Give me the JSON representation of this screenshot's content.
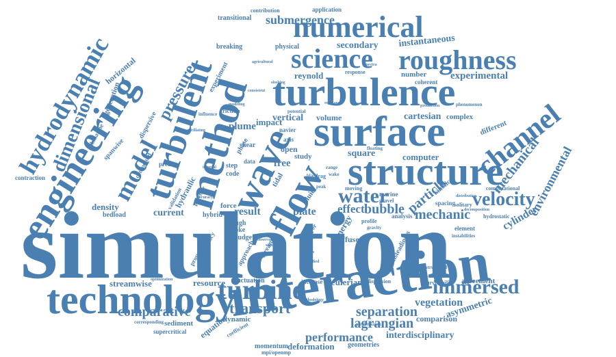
{
  "theme": {
    "word_color": "#4a7fb2",
    "background": "#ffffff"
  },
  "words": {
    "simulation": "simulation",
    "interaction": "interaction",
    "technology": "technology",
    "structure": "structure",
    "surface": "surface",
    "turbulence": "turbulence",
    "method": "method",
    "engineering": "engineering",
    "flow": "flow",
    "wave": "wave",
    "turbulent": "turbulent",
    "numerical": "numerical",
    "science": "science",
    "roughness": "roughness",
    "channel": "channel",
    "turbine": "turbine",
    "immersed": "immersed",
    "hydrodynamic": "hydrodynamic",
    "dimensional": "dimensional",
    "model": "model",
    "pressure": "pressure",
    "velocity": "velocity",
    "mechanical": "mechanical",
    "water": "water",
    "bubble": "bubble",
    "effect": "effect",
    "particle": "particle",
    "mechanic": "mechanic",
    "environmental": "environmental",
    "cylinder": "cylinder",
    "transport": "transport",
    "separation": "separation",
    "lagrangian": "lagrangian",
    "performance": "performance",
    "comparative": "comparative",
    "current": "current",
    "result": "result",
    "plate": "plate",
    "density": "density",
    "vegetation": "vegetation",
    "comparison": "comparison",
    "asymmetric": "asymmetric",
    "interdisciplinary": "interdisciplinary",
    "deformation": "deformation",
    "geometries": "geometries",
    "momentum": "momentum",
    "mpi_openmp": "mpi/openmp",
    "streamwise": "streamwise",
    "resource": "resource",
    "fluctuation": "fluctuation",
    "increase": "increase",
    "eulerian": "eulerian",
    "dispersion": "dispersion",
    "survivability": "survivability",
    "agreement": "agreement",
    "sediment": "sediment",
    "supercritical": "supercritical",
    "equation": "equation",
    "dynamic": "dynamic",
    "coefficient": "coefficient",
    "submergence": "submergence",
    "secondary": "secondary",
    "instantaneous": "instantaneous",
    "experimental": "experimental",
    "reynold": "reynold",
    "number": "number",
    "computer": "computer",
    "square": "square",
    "cartesian": "cartesian",
    "complex": "complex",
    "different": "different",
    "vertical": "vertical",
    "volume": "volume",
    "impact": "impact",
    "plume": "plume",
    "friction": "friction",
    "free": "free",
    "open": "open",
    "study": "study",
    "axis": "axis",
    "navier": "navier",
    "stoke": "stoke",
    "rough": "rough",
    "budget": "budget",
    "hybrid": "hybrid",
    "force": "force",
    "bedload": "bedload",
    "contraction": "contraction",
    "spanwise": "spanwise",
    "horizontal": "horizontal",
    "transitional": "transitional",
    "breaking": "breaking",
    "physical": "physical",
    "application": "application",
    "contribution": "contribution",
    "response": "response",
    "coherent": "coherent",
    "computational": "computational",
    "element": "element",
    "instabilities": "instabilities",
    "hydrostatic": "hydrostatic",
    "solitary": "solitary",
    "kinetic": "kinetic",
    "spacing": "spacing",
    "energy": "energy",
    "diffuser": "diffuser",
    "unsteadiness": "unsteadiness",
    "marine": "marine",
    "gravel": "gravel",
    "profile": "profile",
    "analysis": "analysis",
    "moving": "moving",
    "drag": "drag",
    "wake": "wake",
    "fluid": "fluid",
    "layer": "layer",
    "code": "code",
    "step": "step",
    "phase": "phase",
    "shear": "shear",
    "tidal": "tidal",
    "data": "data",
    "predict": "predict",
    "hydraulic": "hydraulic",
    "pipeline": "pipeline",
    "compound": "compound",
    "validation": "validation",
    "dispersive": "dispersive",
    "generation": "generation",
    "submarine": "submarine",
    "experiment": "experiment",
    "frequency": "frequency",
    "propagation": "propagation",
    "approach": "approach",
    "stream": "stream",
    "gravity": "gravity",
    "potential": "potential",
    "production": "production",
    "phenomenon": "phenomenon",
    "influence": "influence",
    "oscillating": "oscillating",
    "optimization": "optimization",
    "corresponding": "corresponding",
    "methodology": "methodology",
    "observed": "observed",
    "significant": "significant",
    "quantified": "quantified",
    "stresses": "stresses",
    "parallelization": "parallelization",
    "distribution": "distribution",
    "decomposition": "decomposition",
    "peak": "peak",
    "range": "range",
    "blade": "blade",
    "reveal": "reveal",
    "integral": "integral",
    "accuracy": "accuracy",
    "modeling": "modeling",
    "consistent": "consistent",
    "sloshing": "sloshing",
    "floating": "floating",
    "unstructured": "unstructured",
    "agricultural": "agricultural",
    "spectra": "spectra",
    "resistance": "resistance"
  }
}
